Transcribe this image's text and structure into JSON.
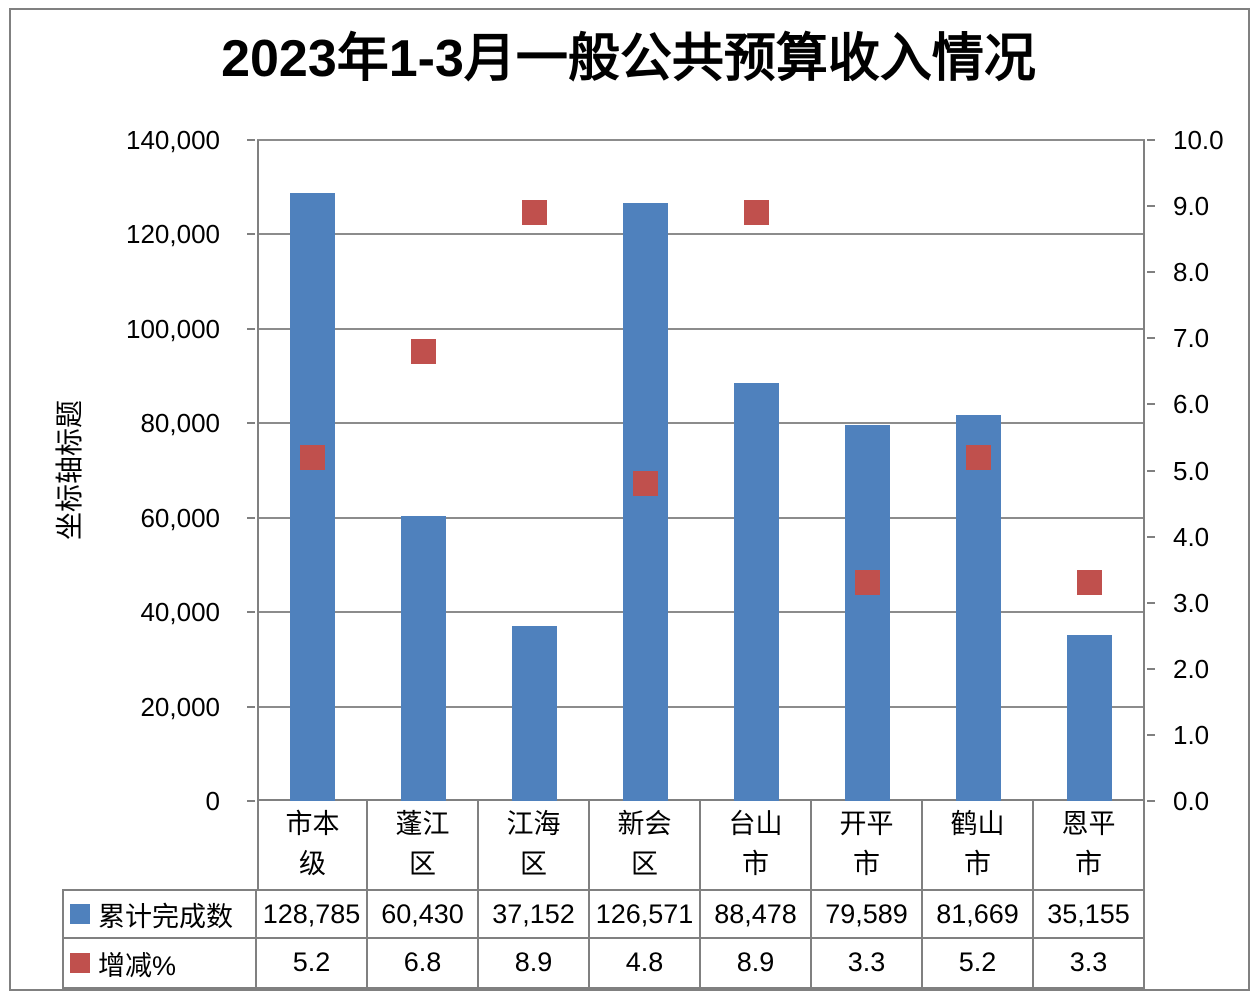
{
  "chart_data": {
    "type": "combo-bar-scatter",
    "title": "2023年1-3月一般公共预算收入情况",
    "categories": [
      "市本级",
      "蓬江区",
      "江海区",
      "新会区",
      "台山市",
      "开平市",
      "鹤山市",
      "恩平市"
    ],
    "category_label_lines": [
      [
        "市本",
        "级"
      ],
      [
        "蓬江",
        "区"
      ],
      [
        "江海",
        "区"
      ],
      [
        "新会",
        "区"
      ],
      [
        "台山",
        "市"
      ],
      [
        "开平",
        "市"
      ],
      [
        "鹤山",
        "市"
      ],
      [
        "恩平",
        "市"
      ]
    ],
    "series": [
      {
        "name": "累计完成数",
        "type": "bar",
        "axis": "left",
        "color": "#4F81BD",
        "values": [
          128785,
          60430,
          37152,
          126571,
          88478,
          79589,
          81669,
          35155
        ],
        "values_formatted": [
          "128,785",
          "60,430",
          "37,152",
          "126,571",
          "88,478",
          "79,589",
          "81,669",
          "35,155"
        ]
      },
      {
        "name": "增减%",
        "type": "scatter",
        "axis": "right",
        "color": "#C0504D",
        "values": [
          5.2,
          6.8,
          8.9,
          4.8,
          8.9,
          3.3,
          5.2,
          3.3
        ],
        "values_formatted": [
          "5.2",
          "6.8",
          "8.9",
          "4.8",
          "8.9",
          "3.3",
          "5.2",
          "3.3"
        ]
      }
    ],
    "left_axis": {
      "title": "坐标轴标题",
      "min": 0,
      "max": 140000,
      "step": 20000,
      "tick_labels": [
        "0",
        "20,000",
        "40,000",
        "60,000",
        "80,000",
        "100,000",
        "120,000",
        "140,000"
      ]
    },
    "right_axis": {
      "min": 0,
      "max": 10,
      "step": 1,
      "tick_labels": [
        "0.0",
        "1.0",
        "2.0",
        "3.0",
        "4.0",
        "5.0",
        "6.0",
        "7.0",
        "8.0",
        "9.0",
        "10.0"
      ]
    },
    "grid": true,
    "legend_position": "data-table",
    "colors": {
      "bar": "#4F81BD",
      "marker": "#C0504D",
      "gridline": "#8C8C8C",
      "axis_line": "#808080",
      "table_border": "#808080",
      "text": "#000000",
      "background": "#FFFFFF"
    }
  }
}
